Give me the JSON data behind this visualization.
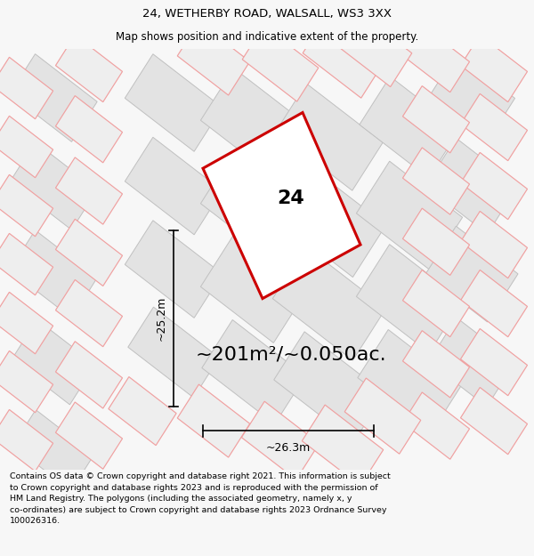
{
  "title": "24, WETHERBY ROAD, WALSALL, WS3 3XX",
  "subtitle": "Map shows position and indicative extent of the property.",
  "area_text": "~201m²/~0.050ac.",
  "label_24": "24",
  "dim_height": "~25.2m",
  "dim_width": "~26.3m",
  "footer": "Contains OS data © Crown copyright and database right 2021. This information is subject to Crown copyright and database rights 2023 and is reproduced with the permission of HM Land Registry. The polygons (including the associated geometry, namely x, y co-ordinates) are subject to Crown copyright and database rights 2023 Ordnance Survey 100026316.",
  "bg_color": "#f7f7f7",
  "property_fill": "#ebebeb",
  "property_edge": "#cc0000",
  "neighbor_fill": "#e3e3e3",
  "neighbor_edge_pink": "#f0a0a0",
  "neighbor_edge_gray": "#c0c0c0",
  "title_fontsize": 9.5,
  "subtitle_fontsize": 8.5,
  "area_fontsize": 16,
  "label_fontsize": 16,
  "dim_fontsize": 9,
  "footer_fontsize": 6.8
}
